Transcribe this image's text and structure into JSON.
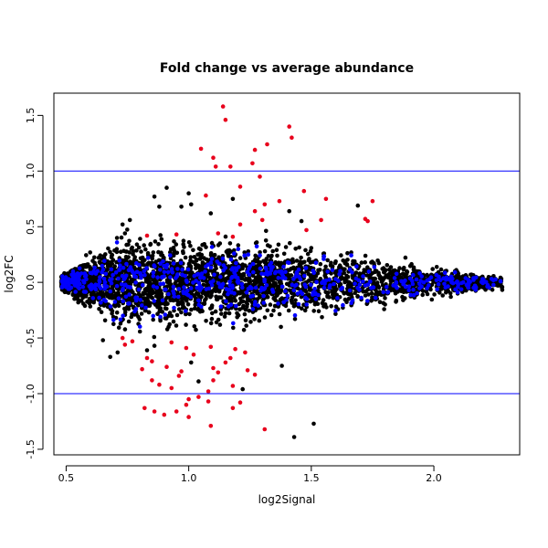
{
  "chart_data": {
    "type": "scatter",
    "title": "Fold change vs average abundance",
    "xlabel": "log2Signal",
    "ylabel": "log2FC",
    "xlim": [
      0.45,
      2.35
    ],
    "ylim": [
      -1.55,
      1.7
    ],
    "x_ticks": [
      {
        "v": 0.5,
        "label": "0.5"
      },
      {
        "v": 1.0,
        "label": "1.0"
      },
      {
        "v": 1.5,
        "label": "1.5"
      },
      {
        "v": 2.0,
        "label": "2.0"
      }
    ],
    "y_ticks": [
      {
        "v": -1.5,
        "label": "-1.5"
      },
      {
        "v": -1.0,
        "label": "-1.0"
      },
      {
        "v": -0.5,
        "label": "-0.5"
      },
      {
        "v": 0.0,
        "label": "0.0"
      },
      {
        "v": 0.5,
        "label": "0.5"
      },
      {
        "v": 1.0,
        "label": "1.0"
      },
      {
        "v": 1.5,
        "label": "1.5"
      }
    ],
    "reference_lines": [
      {
        "axis": "y",
        "value": 1.0,
        "color": "#0000ff"
      },
      {
        "axis": "y",
        "value": -1.0,
        "color": "#0000ff"
      }
    ],
    "grid": false,
    "legend": "none",
    "colors": {
      "background_points": "#000000",
      "highlight_points": "#0000ff",
      "significant_points": "#e8001c"
    },
    "series": [
      {
        "color": "#e8001c",
        "points": [
          [
            1.14,
            1.58
          ],
          [
            1.15,
            1.46
          ],
          [
            1.41,
            1.4
          ],
          [
            1.42,
            1.3
          ],
          [
            1.32,
            1.24
          ],
          [
            1.05,
            1.2
          ],
          [
            1.27,
            1.19
          ],
          [
            1.1,
            1.12
          ],
          [
            1.26,
            1.07
          ],
          [
            1.11,
            1.04
          ],
          [
            1.17,
            1.04
          ],
          [
            1.29,
            0.95
          ],
          [
            1.47,
            0.82
          ],
          [
            1.21,
            0.86
          ],
          [
            1.56,
            0.75
          ],
          [
            1.75,
            0.73
          ],
          [
            1.07,
            0.78
          ],
          [
            1.31,
            0.7
          ],
          [
            1.37,
            0.73
          ],
          [
            1.72,
            0.57
          ],
          [
            1.27,
            0.64
          ],
          [
            1.73,
            0.55
          ],
          [
            1.54,
            0.56
          ],
          [
            1.3,
            0.56
          ],
          [
            1.21,
            0.52
          ],
          [
            1.48,
            0.47
          ],
          [
            1.12,
            0.44
          ],
          [
            0.95,
            0.43
          ],
          [
            0.83,
            0.42
          ],
          [
            1.18,
            0.41
          ],
          [
            0.73,
            -0.5
          ],
          [
            0.77,
            -0.53
          ],
          [
            0.74,
            -0.56
          ],
          [
            0.93,
            -0.54
          ],
          [
            0.99,
            -0.59
          ],
          [
            1.09,
            -0.58
          ],
          [
            1.19,
            -0.6
          ],
          [
            1.02,
            -0.65
          ],
          [
            1.17,
            -0.68
          ],
          [
            1.15,
            -0.72
          ],
          [
            1.23,
            -0.63
          ],
          [
            0.83,
            -0.68
          ],
          [
            0.85,
            -0.71
          ],
          [
            0.81,
            -0.78
          ],
          [
            0.91,
            -0.76
          ],
          [
            0.97,
            -0.8
          ],
          [
            1.1,
            -0.77
          ],
          [
            1.12,
            -0.81
          ],
          [
            1.24,
            -0.79
          ],
          [
            1.1,
            -0.88
          ],
          [
            1.27,
            -0.83
          ],
          [
            0.85,
            -0.88
          ],
          [
            0.88,
            -0.92
          ],
          [
            0.93,
            -0.95
          ],
          [
            0.96,
            -0.84
          ],
          [
            1.18,
            -0.93
          ],
          [
            1.08,
            -0.98
          ],
          [
            1.0,
            -1.05
          ],
          [
            0.99,
            -1.1
          ],
          [
            1.04,
            -1.03
          ],
          [
            1.08,
            -1.07
          ],
          [
            0.82,
            -1.13
          ],
          [
            0.86,
            -1.16
          ],
          [
            0.95,
            -1.16
          ],
          [
            0.9,
            -1.19
          ],
          [
            1.0,
            -1.21
          ],
          [
            1.09,
            -1.29
          ],
          [
            1.31,
            -1.32
          ],
          [
            1.18,
            -1.13
          ],
          [
            1.21,
            -1.08
          ]
        ]
      },
      {
        "color": "#000000",
        "points": [
          [
            1.51,
            -1.27
          ],
          [
            1.43,
            -1.39
          ],
          [
            0.91,
            0.85
          ],
          [
            1.0,
            0.8
          ],
          [
            0.86,
            0.77
          ],
          [
            0.97,
            0.68
          ],
          [
            0.88,
            0.68
          ],
          [
            1.69,
            0.69
          ],
          [
            1.41,
            0.64
          ],
          [
            1.46,
            0.55
          ],
          [
            0.76,
            0.56
          ],
          [
            0.73,
            0.52
          ],
          [
            0.68,
            -0.67
          ],
          [
            0.71,
            -0.63
          ],
          [
            1.04,
            -0.89
          ],
          [
            1.22,
            -0.96
          ],
          [
            1.38,
            -0.75
          ],
          [
            1.01,
            -0.72
          ],
          [
            0.86,
            -0.57
          ],
          [
            0.65,
            -0.52
          ],
          [
            0.83,
            -0.61
          ],
          [
            1.01,
            0.7
          ],
          [
            1.09,
            0.62
          ],
          [
            1.18,
            0.75
          ]
        ]
      }
    ]
  }
}
